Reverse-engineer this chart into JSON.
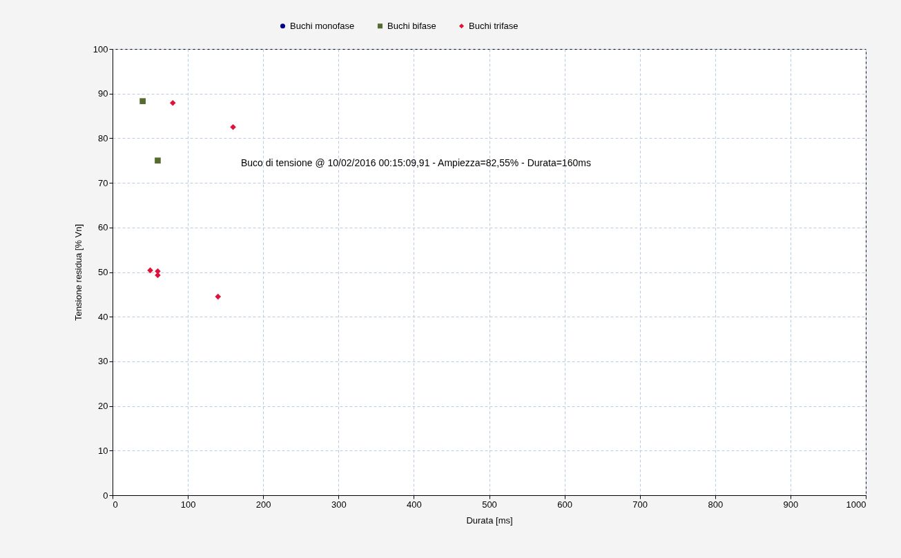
{
  "chart_data": {
    "type": "scatter",
    "xlabel": "Durata [ms]",
    "ylabel": "Tensione residua [% Vn]",
    "xlim": [
      0,
      1000
    ],
    "xticks": [
      0,
      100,
      200,
      300,
      400,
      500,
      600,
      700,
      800,
      900,
      {
        "value": 1000,
        "label": "1000"
      }
    ],
    "ylim": [
      0,
      100
    ],
    "yticks": [
      0,
      10,
      20,
      30,
      40,
      50,
      60,
      70,
      80,
      90,
      100
    ],
    "grid": true,
    "legend": "top",
    "series": [
      {
        "name": "Buchi monofase",
        "color": "#00008b",
        "marker": "circle"
      },
      {
        "name": "Buchi bifase",
        "color": "#556b2f",
        "marker": "square",
        "x": [
          40,
          60
        ],
        "values": [
          88.3,
          75.0
        ]
      },
      {
        "name": "Buchi trifase",
        "color": "#dc143c",
        "marker": "diamond",
        "x": [
          80,
          160,
          50,
          60,
          60,
          140
        ],
        "values": [
          87.9,
          82.5,
          50.4,
          50.2,
          49.3,
          44.5
        ]
      }
    ],
    "annotations": [
      "Buco di tensione @ 10/02/2016 00:15:09,91 - Ampiezza=82,55% - Durata=160ms"
    ]
  }
}
